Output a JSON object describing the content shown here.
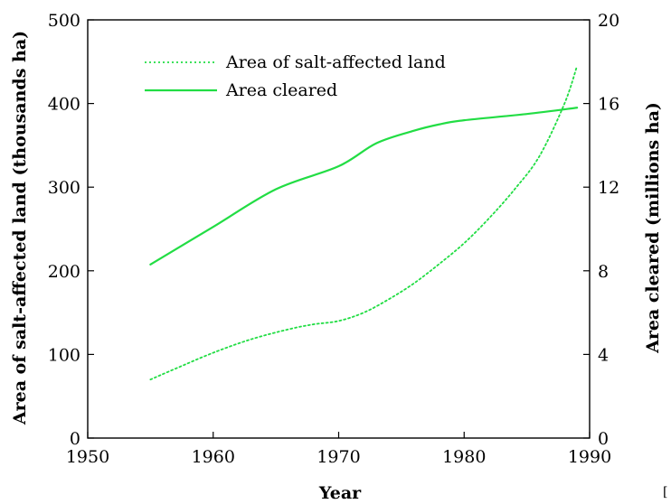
{
  "chart_data": {
    "type": "line",
    "title": "",
    "xlabel": "Year",
    "ylabel_left": "Area of salt-affected land (thousands ha)",
    "ylabel_right": "Area cleared (millions ha)",
    "xlim": [
      1950,
      1990
    ],
    "ylim_left": [
      0,
      500
    ],
    "ylim_right": [
      0,
      20
    ],
    "x_ticks": [
      1950,
      1960,
      1970,
      1980,
      1990
    ],
    "y_ticks_left": [
      0,
      100,
      200,
      300,
      400,
      500
    ],
    "y_ticks_right": [
      0,
      4,
      8,
      12,
      16,
      20
    ],
    "grid": false,
    "legend_position": "top-left",
    "series": [
      {
        "name": "Area of salt-affected land",
        "axis": "left",
        "style": "dotted",
        "color": "#22dd44",
        "x": [
          1955,
          1957,
          1960,
          1963,
          1966,
          1968,
          1970,
          1972,
          1974,
          1976,
          1978,
          1980,
          1982,
          1984,
          1986,
          1988,
          1989
        ],
        "y": [
          70,
          83,
          102,
          118,
          130,
          136,
          140,
          150,
          166,
          185,
          208,
          233,
          263,
          297,
          337,
          400,
          445
        ]
      },
      {
        "name": "Area cleared",
        "axis": "right",
        "style": "solid",
        "color": "#22dd44",
        "x": [
          1955,
          1960,
          1965,
          1970,
          1973,
          1976,
          1978,
          1980,
          1985,
          1989
        ],
        "y": [
          8.3,
          10.1,
          11.9,
          13.0,
          14.1,
          14.7,
          15.0,
          15.2,
          15.5,
          15.8
        ]
      }
    ]
  },
  "stray_char": "["
}
